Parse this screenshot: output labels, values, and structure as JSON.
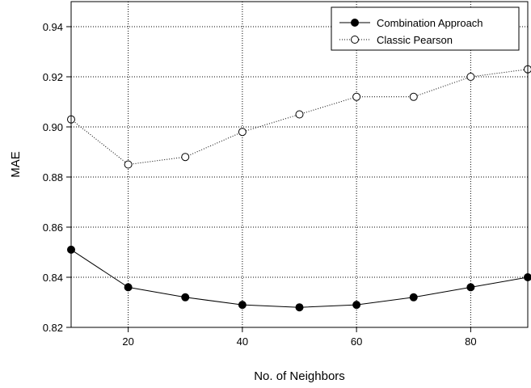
{
  "chart_data": {
    "type": "line",
    "title": "",
    "xlabel": "No. of Neighbors",
    "ylabel": "MAE",
    "xlim": [
      10,
      90
    ],
    "ylim": [
      0.82,
      0.95
    ],
    "xticks": [
      20,
      40,
      60,
      80
    ],
    "yticks": [
      0.82,
      0.84,
      0.86,
      0.88,
      0.9,
      0.92,
      0.94
    ],
    "ytick_labels": [
      "0.82",
      "0.84",
      "0.86",
      "0.88",
      "0.90",
      "0.92",
      "0.94"
    ],
    "grid": true,
    "legend_position": "top-right",
    "x": [
      10,
      20,
      30,
      40,
      50,
      60,
      70,
      80,
      90
    ],
    "series": [
      {
        "name": "Combination Approach",
        "values": [
          0.851,
          0.836,
          0.832,
          0.829,
          0.828,
          0.829,
          0.832,
          0.836,
          0.84
        ],
        "line_style": "solid",
        "marker": "filled-circle",
        "color": "#000000"
      },
      {
        "name": "Classic Pearson",
        "values": [
          0.903,
          0.885,
          0.888,
          0.898,
          0.905,
          0.912,
          0.912,
          0.92,
          0.923
        ],
        "line_style": "dotted",
        "marker": "open-circle",
        "color": "#000000"
      }
    ]
  }
}
